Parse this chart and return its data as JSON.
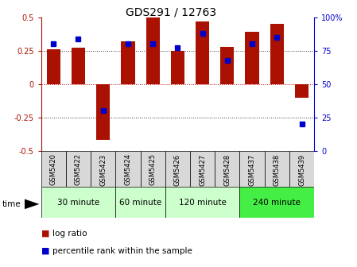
{
  "title": "GDS291 / 12763",
  "samples": [
    "GSM5420",
    "GSM5422",
    "GSM5423",
    "GSM5424",
    "GSM5425",
    "GSM5426",
    "GSM5427",
    "GSM5428",
    "GSM5437",
    "GSM5438",
    "GSM5439"
  ],
  "log_ratios": [
    0.26,
    0.27,
    -0.42,
    0.32,
    0.5,
    0.25,
    0.47,
    0.28,
    0.39,
    0.45,
    -0.1
  ],
  "percentile_ranks": [
    80,
    84,
    30,
    80,
    80,
    77,
    88,
    68,
    80,
    85,
    20
  ],
  "bar_color": "#AA1100",
  "dot_color": "#0000CC",
  "ylim": [
    -0.5,
    0.5
  ],
  "yticks_left": [
    -0.5,
    -0.25,
    0,
    0.25,
    0.5
  ],
  "yticks_right": [
    0,
    25,
    50,
    75,
    100
  ],
  "groups": [
    {
      "label": "30 minute",
      "start": 0,
      "end": 3
    },
    {
      "label": "60 minute",
      "start": 3,
      "end": 5
    },
    {
      "label": "120 minute",
      "start": 5,
      "end": 8
    },
    {
      "label": "240 minute",
      "start": 8,
      "end": 11
    }
  ],
  "group_colors": [
    "#ccffcc",
    "#ccffcc",
    "#ccffcc",
    "#44ee44"
  ],
  "time_label": "time",
  "legend_log_ratio": "log ratio",
  "legend_percentile": "percentile rank within the sample",
  "background_color": "#ffffff",
  "sample_bg_color": "#d8d8d8"
}
